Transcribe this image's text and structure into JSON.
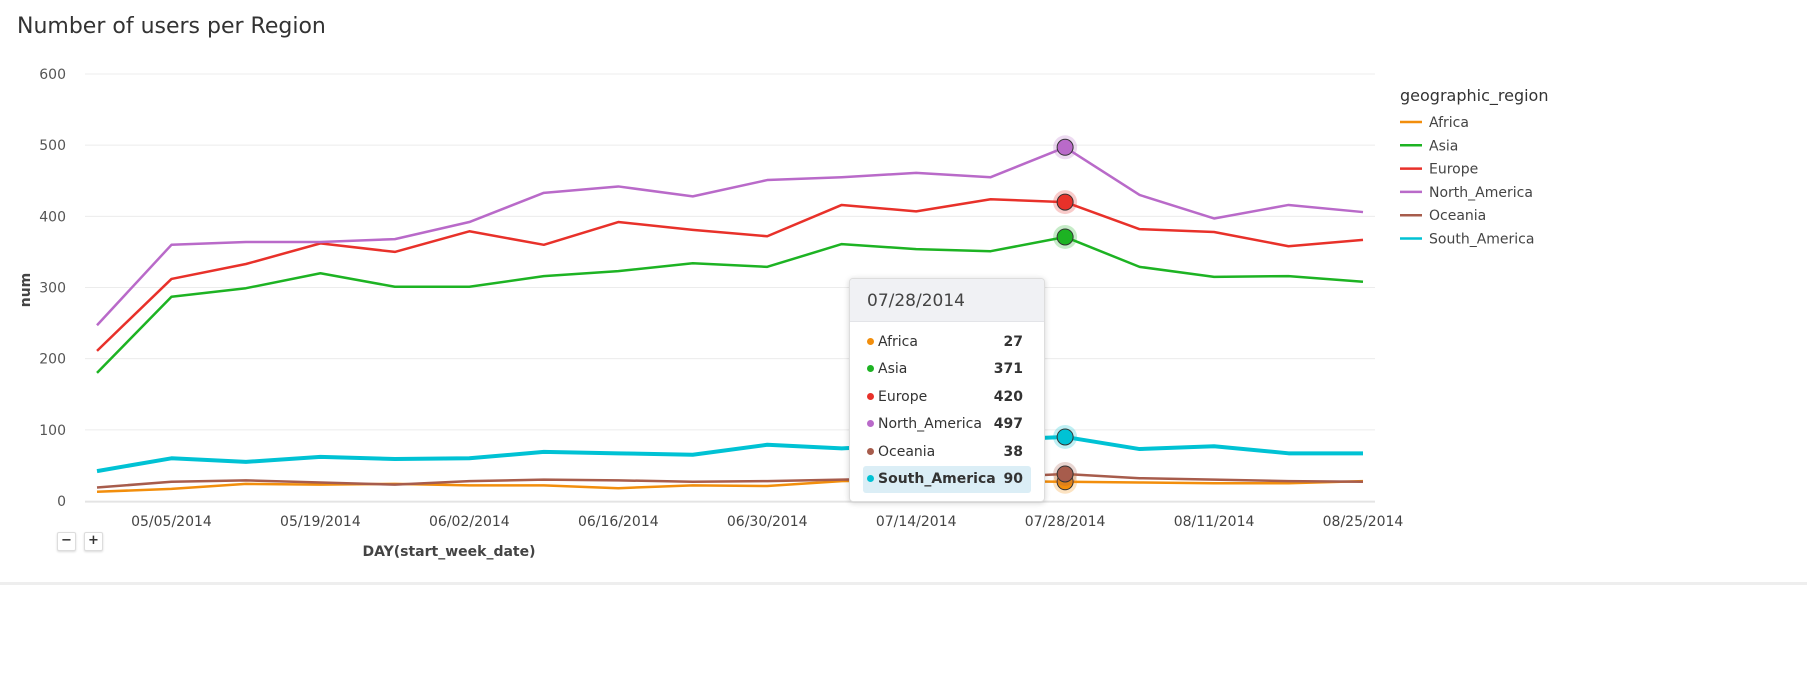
{
  "chart_data": {
    "type": "line",
    "title": "Number of users per Region",
    "xlabel": "DAY(start_week_date)",
    "ylabel": "num",
    "ylim": [
      0,
      600
    ],
    "yticks": [
      "0",
      "100",
      "200",
      "300",
      "400",
      "500",
      "600"
    ],
    "grid": true,
    "legend_title": "geographic_region",
    "legend_position": "right",
    "x": [
      "04/28/2014",
      "05/05/2014",
      "05/12/2014",
      "05/19/2014",
      "05/26/2014",
      "06/02/2014",
      "06/09/2014",
      "06/16/2014",
      "06/23/2014",
      "06/30/2014",
      "07/07/2014",
      "07/14/2014",
      "07/21/2014",
      "07/28/2014",
      "08/04/2014",
      "08/11/2014",
      "08/18/2014",
      "08/25/2014"
    ],
    "xticks": [
      "05/05/2014",
      "05/19/2014",
      "06/02/2014",
      "06/16/2014",
      "06/30/2014",
      "07/14/2014",
      "07/28/2014",
      "08/11/2014",
      "08/25/2014"
    ],
    "series": [
      {
        "name": "Africa",
        "color": "#f28e0c",
        "values": [
          13,
          17,
          24,
          23,
          24,
          22,
          22,
          18,
          22,
          21,
          28,
          30,
          28,
          27,
          26,
          25,
          25,
          28
        ]
      },
      {
        "name": "Asia",
        "color": "#1db323",
        "values": [
          180,
          287,
          299,
          320,
          301,
          301,
          316,
          323,
          334,
          329,
          361,
          354,
          351,
          371,
          329,
          315,
          316,
          308
        ]
      },
      {
        "name": "Europe",
        "color": "#e8312a",
        "values": [
          211,
          312,
          333,
          362,
          350,
          379,
          360,
          392,
          381,
          372,
          416,
          407,
          424,
          420,
          382,
          378,
          358,
          367
        ]
      },
      {
        "name": "North_America",
        "color": "#b96ac9",
        "values": [
          247,
          360,
          364,
          364,
          368,
          392,
          433,
          442,
          428,
          451,
          455,
          461,
          455,
          497,
          430,
          397,
          416,
          406
        ]
      },
      {
        "name": "Oceania",
        "color": "#a75c4c",
        "values": [
          19,
          27,
          29,
          26,
          23,
          28,
          30,
          29,
          27,
          28,
          30,
          32,
          33,
          38,
          32,
          30,
          28,
          27
        ]
      },
      {
        "name": "South_America",
        "color": "#00c2d4",
        "values": [
          42,
          60,
          55,
          62,
          59,
          60,
          69,
          67,
          65,
          79,
          74,
          79,
          86,
          90,
          73,
          77,
          67,
          67
        ]
      }
    ]
  },
  "tooltip": {
    "date": "07/28/2014",
    "highlighted": "South_America",
    "rows": [
      {
        "name": "Africa",
        "value": "27"
      },
      {
        "name": "Asia",
        "value": "371"
      },
      {
        "name": "Europe",
        "value": "420"
      },
      {
        "name": "North_America",
        "value": "497"
      },
      {
        "name": "Oceania",
        "value": "38"
      },
      {
        "name": "South_America",
        "value": "90"
      }
    ]
  },
  "controls": {
    "zoom_out": "−",
    "zoom_in": "+"
  }
}
